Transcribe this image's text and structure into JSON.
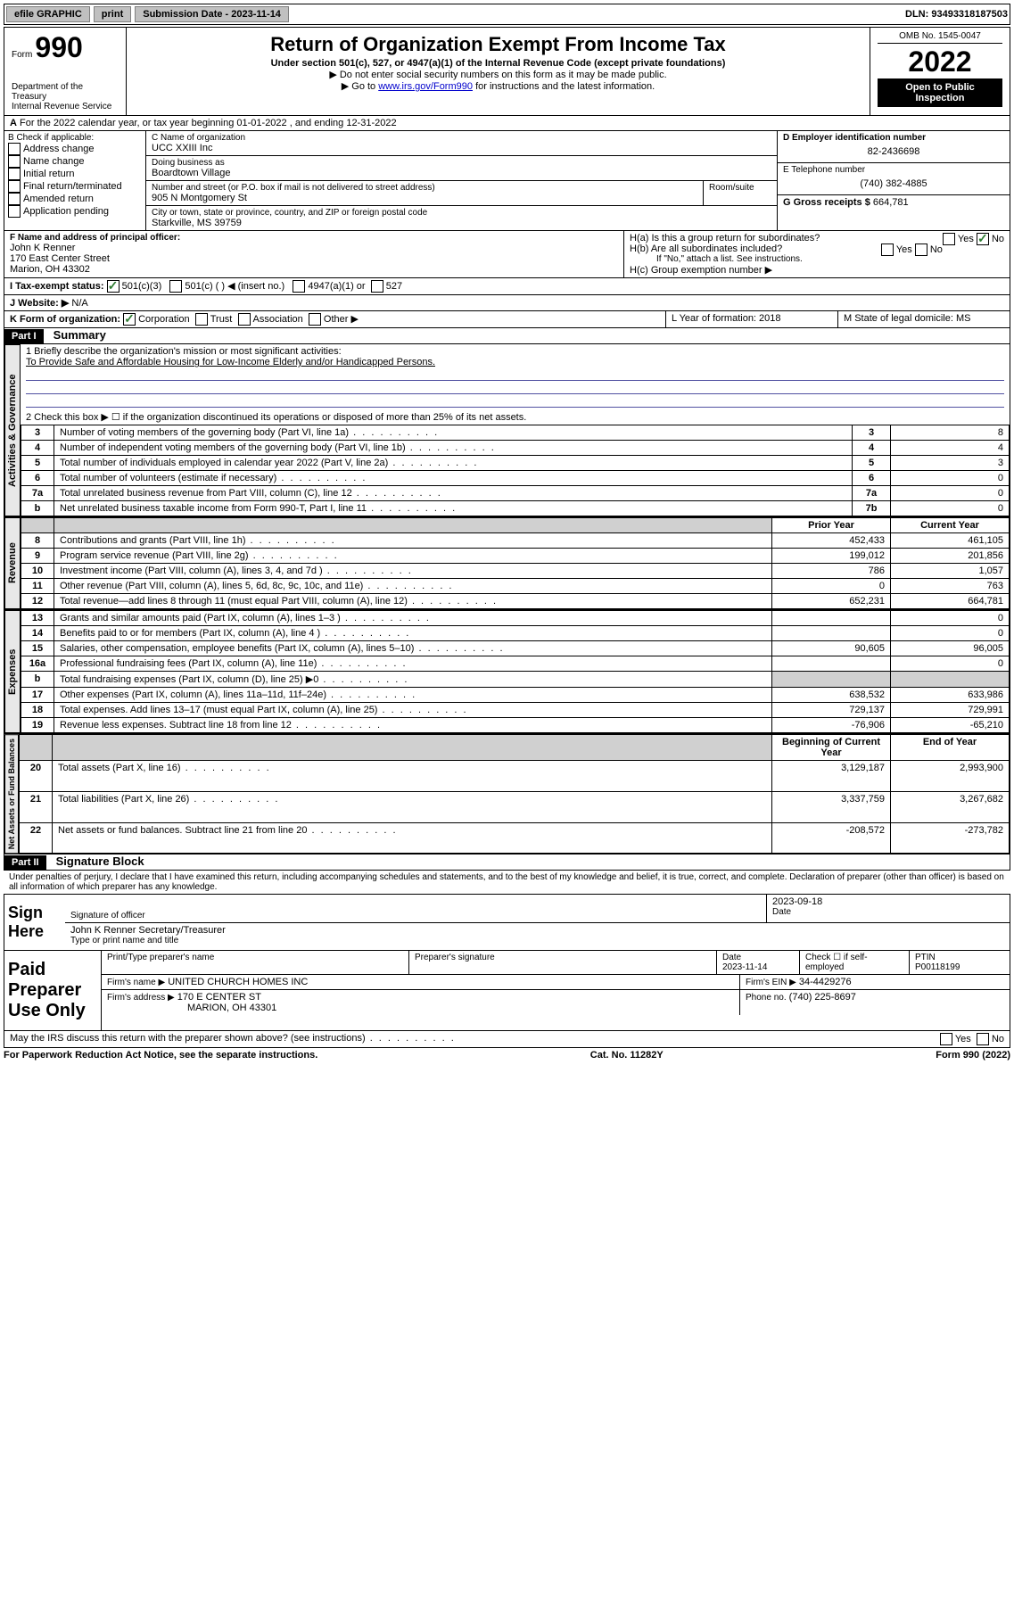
{
  "topbar": {
    "efile": "efile GRAPHIC",
    "print": "print",
    "submission_label": "Submission Date - 2023-11-14",
    "dln_label": "DLN: 93493318187503"
  },
  "header": {
    "form_word": "Form",
    "form_number": "990",
    "title": "Return of Organization Exempt From Income Tax",
    "subtitle": "Under section 501(c), 527, or 4947(a)(1) of the Internal Revenue Code (except private foundations)",
    "note1": "▶ Do not enter social security numbers on this form as it may be made public.",
    "note2_pre": "▶ Go to ",
    "note2_link": "www.irs.gov/Form990",
    "note2_post": " for instructions and the latest information.",
    "dept": "Department of the Treasury",
    "irs": "Internal Revenue Service",
    "omb": "OMB No. 1545-0047",
    "year": "2022",
    "open": "Open to Public Inspection"
  },
  "lineA": "For the 2022 calendar year, or tax year beginning 01-01-2022   , and ending 12-31-2022",
  "boxB": {
    "label": "B Check if applicable:",
    "items": [
      "Address change",
      "Name change",
      "Initial return",
      "Final return/terminated",
      "Amended return",
      "Application pending"
    ]
  },
  "boxC": {
    "name_label": "C Name of organization",
    "name": "UCC XXIII Inc",
    "dba_label": "Doing business as",
    "dba": "Boardtown Village",
    "street_label": "Number and street (or P.O. box if mail is not delivered to street address)",
    "room_label": "Room/suite",
    "street": "905 N Montgomery St",
    "city_label": "City or town, state or province, country, and ZIP or foreign postal code",
    "city": "Starkville, MS  39759"
  },
  "boxD": {
    "label": "D Employer identification number",
    "value": "82-2436698"
  },
  "boxE": {
    "label": "E Telephone number",
    "value": "(740) 382-4885"
  },
  "boxG": {
    "label": "G Gross receipts $",
    "value": "664,781"
  },
  "boxF": {
    "label": "F  Name and address of principal officer:",
    "name": "John K Renner",
    "street": "170 East Center Street",
    "city": "Marion, OH  43302"
  },
  "boxH": {
    "a_label": "H(a)  Is this a group return for subordinates?",
    "a_yes": "Yes",
    "a_no": "No",
    "b_label": "H(b)  Are all subordinates included?",
    "b_yes": "Yes",
    "b_no": "No",
    "b_note": "If \"No,\" attach a list. See instructions.",
    "c_label": "H(c)  Group exemption number ▶"
  },
  "boxI": {
    "label": "I   Tax-exempt status:",
    "opt1": "501(c)(3)",
    "opt2_pre": "501(c) (   )",
    "opt2_post": "◀ (insert no.)",
    "opt3": "4947(a)(1) or",
    "opt4": "527"
  },
  "boxJ": {
    "label": "J   Website: ▶",
    "value": "N/A"
  },
  "boxK": {
    "label": "K Form of organization:",
    "opts": [
      "Corporation",
      "Trust",
      "Association",
      "Other ▶"
    ]
  },
  "boxL": {
    "label": "L Year of formation: 2018"
  },
  "boxM": {
    "label": "M State of legal domicile: MS"
  },
  "partI": {
    "bar": "Part I",
    "title": "Summary"
  },
  "partII": {
    "bar": "Part II",
    "title": "Signature Block"
  },
  "vlabels": {
    "gov": "Activities & Governance",
    "rev": "Revenue",
    "exp": "Expenses",
    "net": "Net Assets or Fund Balances"
  },
  "summary": {
    "line1_label": "1   Briefly describe the organization's mission or most significant activities:",
    "line1_text": "To Provide Safe and Affordable Housing for Low-Income Elderly and/or Handicapped Persons.",
    "line2": "2   Check this box ▶ ☐  if the organization discontinued its operations or disposed of more than 25% of its net assets.",
    "lines_gov": [
      {
        "n": "3",
        "t": "Number of voting members of the governing body (Part VI, line 1a)",
        "box": "3",
        "v": "8"
      },
      {
        "n": "4",
        "t": "Number of independent voting members of the governing body (Part VI, line 1b)",
        "box": "4",
        "v": "4"
      },
      {
        "n": "5",
        "t": "Total number of individuals employed in calendar year 2022 (Part V, line 2a)",
        "box": "5",
        "v": "3"
      },
      {
        "n": "6",
        "t": "Total number of volunteers (estimate if necessary)",
        "box": "6",
        "v": "0"
      },
      {
        "n": "7a",
        "t": "Total unrelated business revenue from Part VIII, column (C), line 12",
        "box": "7a",
        "v": "0"
      },
      {
        "n": "b",
        "t": "Net unrelated business taxable income from Form 990-T, Part I, line 11",
        "box": "7b",
        "v": "0"
      }
    ],
    "col_headers": {
      "prior": "Prior Year",
      "current": "Current Year",
      "begin": "Beginning of Current Year",
      "end": "End of Year"
    },
    "lines_rev": [
      {
        "n": "8",
        "t": "Contributions and grants (Part VIII, line 1h)",
        "p": "452,433",
        "c": "461,105"
      },
      {
        "n": "9",
        "t": "Program service revenue (Part VIII, line 2g)",
        "p": "199,012",
        "c": "201,856"
      },
      {
        "n": "10",
        "t": "Investment income (Part VIII, column (A), lines 3, 4, and 7d )",
        "p": "786",
        "c": "1,057"
      },
      {
        "n": "11",
        "t": "Other revenue (Part VIII, column (A), lines 5, 6d, 8c, 9c, 10c, and 11e)",
        "p": "0",
        "c": "763"
      },
      {
        "n": "12",
        "t": "Total revenue—add lines 8 through 11 (must equal Part VIII, column (A), line 12)",
        "p": "652,231",
        "c": "664,781"
      }
    ],
    "lines_exp": [
      {
        "n": "13",
        "t": "Grants and similar amounts paid (Part IX, column (A), lines 1–3 )",
        "p": "",
        "c": "0"
      },
      {
        "n": "14",
        "t": "Benefits paid to or for members (Part IX, column (A), line 4 )",
        "p": "",
        "c": "0"
      },
      {
        "n": "15",
        "t": "Salaries, other compensation, employee benefits (Part IX, column (A), lines 5–10)",
        "p": "90,605",
        "c": "96,005"
      },
      {
        "n": "16a",
        "t": "Professional fundraising fees (Part IX, column (A), line 11e)",
        "p": "",
        "c": "0"
      },
      {
        "n": "b",
        "t": "Total fundraising expenses (Part IX, column (D), line 25) ▶0",
        "p": "__gray__",
        "c": "__gray__"
      },
      {
        "n": "17",
        "t": "Other expenses (Part IX, column (A), lines 11a–11d, 11f–24e)",
        "p": "638,532",
        "c": "633,986"
      },
      {
        "n": "18",
        "t": "Total expenses. Add lines 13–17 (must equal Part IX, column (A), line 25)",
        "p": "729,137",
        "c": "729,991"
      },
      {
        "n": "19",
        "t": "Revenue less expenses. Subtract line 18 from line 12",
        "p": "-76,906",
        "c": "-65,210"
      }
    ],
    "lines_net": [
      {
        "n": "20",
        "t": "Total assets (Part X, line 16)",
        "p": "3,129,187",
        "c": "2,993,900"
      },
      {
        "n": "21",
        "t": "Total liabilities (Part X, line 26)",
        "p": "3,337,759",
        "c": "3,267,682"
      },
      {
        "n": "22",
        "t": "Net assets or fund balances. Subtract line 21 from line 20",
        "p": "-208,572",
        "c": "-273,782"
      }
    ]
  },
  "sigblock": {
    "declaration": "Under penalties of perjury, I declare that I have examined this return, including accompanying schedules and statements, and to the best of my knowledge and belief, it is true, correct, and complete. Declaration of preparer (other than officer) is based on all information of which preparer has any knowledge.",
    "sign_here": "Sign Here",
    "sig_officer": "Signature of officer",
    "sig_date": "2023-09-18",
    "date_label": "Date",
    "officer_name": "John K Renner  Secretary/Treasurer",
    "type_name": "Type or print name and title",
    "paid": "Paid Preparer Use Only",
    "prep_name_label": "Print/Type preparer's name",
    "prep_sig_label": "Preparer's signature",
    "prep_date_label": "Date",
    "prep_date": "2023-11-14",
    "check_label": "Check ☐ if self-employed",
    "ptin_label": "PTIN",
    "ptin": "P00118199",
    "firm_name_label": "Firm's name   ▶",
    "firm_name": "UNITED CHURCH HOMES INC",
    "firm_ein_label": "Firm's EIN ▶",
    "firm_ein": "34-4429276",
    "firm_addr_label": "Firm's address ▶",
    "firm_addr1": "170 E CENTER ST",
    "firm_addr2": "MARION, OH  43301",
    "phone_label": "Phone no.",
    "phone": "(740) 225-8697",
    "discuss": "May the IRS discuss this return with the preparer shown above? (see instructions)",
    "discuss_yes": "Yes",
    "discuss_no": "No"
  },
  "footer": {
    "left": "For Paperwork Reduction Act Notice, see the separate instructions.",
    "mid": "Cat. No. 11282Y",
    "right": "Form 990 (2022)"
  }
}
